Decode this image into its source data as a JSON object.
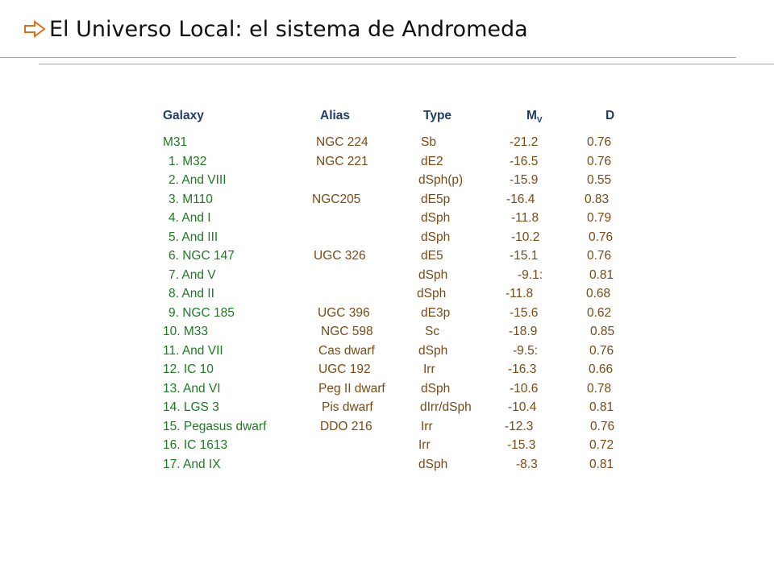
{
  "title": "El Universo Local: el sistema de Andromeda",
  "title_icon": "arrow-right-outline-icon",
  "colors": {
    "accent_rule": "#7fb8a8",
    "header_text": "#1f3d6b",
    "name_text": "#1d7a22",
    "data_text": "#7a4a14",
    "title_arrow": "#e36c1b"
  },
  "table": {
    "headers": {
      "galaxy": "Galaxy",
      "alias": "Alias",
      "type": "Type",
      "mv_main": "M",
      "mv_sub": "V",
      "d": "D"
    },
    "rows": [
      {
        "name": "M31",
        "alias": "NGC 224",
        "type": "Sb",
        "mv": "-21.2",
        "d": "0.76"
      },
      {
        "name": "1. M32",
        "alias": "NGC 221",
        "type": "dE2",
        "mv": "-16.5",
        "d": "0.76"
      },
      {
        "name": "2. And VIII",
        "alias": "",
        "type": "dSph(p)",
        "mv": "-15.9",
        "d": "0.55"
      },
      {
        "name": "3. M110",
        "alias": "NGC205",
        "type": "dE5p",
        "mv": "-16.4",
        "d": "0.83"
      },
      {
        "name": "4. And I",
        "alias": "",
        "type": "dSph",
        "mv": "-11.8",
        "d": "0.79"
      },
      {
        "name": "5. And III",
        "alias": "",
        "type": "dSph",
        "mv": "-10.2",
        "d": "0.76"
      },
      {
        "name": "6. NGC 147",
        "alias": "UGC 326",
        "type": "dE5",
        "mv": "-15.1",
        "d": "0.76"
      },
      {
        "name": "7. And V",
        "alias": "",
        "type": "dSph",
        "mv": "-9.1:",
        "d": "0.81"
      },
      {
        "name": "8. And II",
        "alias": "",
        "type": "dSph",
        "mv": "-11.8",
        "d": "0.68"
      },
      {
        "name": "9. NGC 185",
        "alias": "UGC 396",
        "type": "dE3p",
        "mv": "-15.6",
        "d": "0.62"
      },
      {
        "name": "10. M33",
        "alias": "NGC 598",
        "type": "Sc",
        "mv": "-18.9",
        "d": "0.85"
      },
      {
        "name": "11. And VII",
        "alias": "Cas dwarf",
        "type": "dSph",
        "mv": "-9.5:",
        "d": "0.76"
      },
      {
        "name": "12. IC 10",
        "alias": "UGC 192",
        "type": "Irr",
        "mv": "-16.3",
        "d": "0.66"
      },
      {
        "name": "13. And VI",
        "alias": "Peg II dwarf",
        "type": "dSph",
        "mv": "-10.6",
        "d": "0.78"
      },
      {
        "name": "14. LGS 3",
        "alias": "Pis dwarf",
        "type": "dIrr/dSph",
        "mv": "-10.4",
        "d": "0.81"
      },
      {
        "name": "15. Pegasus dwarf",
        "alias": "DDO 216",
        "type": "Irr",
        "mv": "-12.3",
        "d": "0.76"
      },
      {
        "name": "16. IC 1613",
        "alias": "",
        "type": "Irr",
        "mv": "-15.3",
        "d": "0.72"
      },
      {
        "name": "17. And IX",
        "alias": "",
        "type": "dSph",
        "mv": "-8.3",
        "d": "0.81"
      }
    ]
  }
}
